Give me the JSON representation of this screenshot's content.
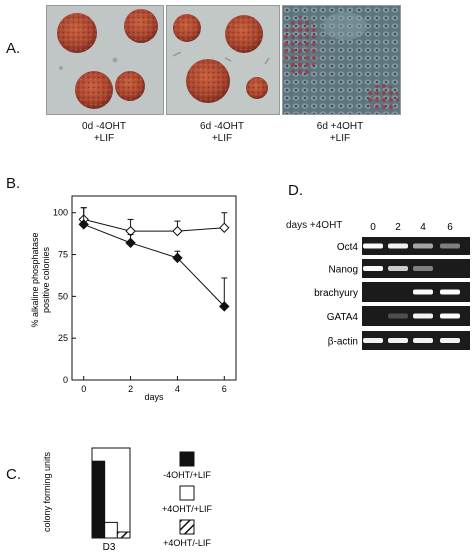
{
  "panelA": {
    "label": "A.",
    "images": [
      {
        "caption_line1": "0d -4OHT",
        "caption_line2": "+LIF"
      },
      {
        "caption_line1": "6d -4OHT",
        "caption_line2": "+LIF"
      },
      {
        "caption_line1": "6d +4OHT",
        "caption_line2": "+LIF"
      }
    ],
    "colors": {
      "background": "#b9c2c2",
      "colony": "#a8452f",
      "treated_bg": "#5e7580"
    }
  },
  "panelB": {
    "label": "B.",
    "chart_data": {
      "type": "line",
      "xlabel": "days",
      "ylabel": "% alkaline phosphatase positive colonies",
      "ylabel_line1": "% alkaline phosphatase",
      "ylabel_line2": "positive colonies",
      "xlim": [
        -0.5,
        6.5
      ],
      "ylim": [
        0,
        110
      ],
      "xticks": [
        0,
        2,
        4,
        6
      ],
      "yticks": [
        0,
        25,
        50,
        75,
        100
      ],
      "series": [
        {
          "marker": "open-diamond",
          "x": [
            0,
            2,
            4,
            6
          ],
          "y": [
            96,
            89,
            89,
            91
          ],
          "err": [
            7,
            7,
            6,
            9
          ]
        },
        {
          "marker": "filled-diamond",
          "x": [
            0,
            2,
            4,
            6
          ],
          "y": [
            93,
            82,
            73,
            44
          ],
          "err": [
            10,
            5,
            4,
            17
          ]
        }
      ]
    }
  },
  "panelC": {
    "label": "C.",
    "chart_data": {
      "type": "bar",
      "ylabel": "colony forming units",
      "categories": [
        "D3"
      ],
      "series": [
        {
          "name": "-4OHT/+LIF",
          "fill": "solid",
          "values": [
            128
          ]
        },
        {
          "name": "+4OHT/+LIF",
          "fill": "open",
          "values": [
            26
          ]
        },
        {
          "name": "+4OHT/-LIF",
          "fill": "hatched",
          "values": [
            10
          ]
        }
      ],
      "ylim": [
        0,
        150
      ]
    }
  },
  "panelD": {
    "label": "D.",
    "header_label": "days +4OHT",
    "lanes": [
      "0",
      "2",
      "4",
      "6"
    ],
    "genes": [
      {
        "name": "Oct4",
        "intensity": [
          1.0,
          0.95,
          0.55,
          0.35
        ]
      },
      {
        "name": "Nanog",
        "intensity": [
          1.0,
          0.75,
          0.35,
          0.0
        ]
      },
      {
        "name": "brachyury",
        "intensity": [
          0.0,
          0.0,
          1.0,
          1.0
        ]
      },
      {
        "name": "GATA4",
        "intensity": [
          0.0,
          0.1,
          0.95,
          1.0
        ]
      },
      {
        "name": "β-actin",
        "intensity": [
          0.95,
          0.95,
          0.95,
          0.95
        ]
      }
    ]
  }
}
